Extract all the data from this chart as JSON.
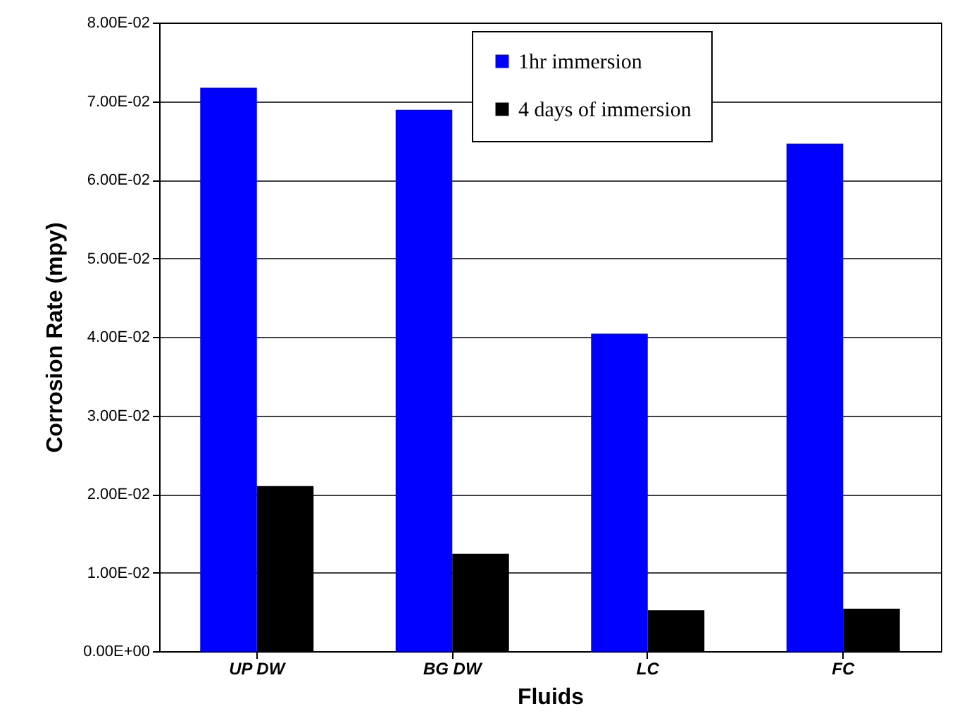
{
  "chart_data": {
    "type": "bar",
    "xlabel": "Fluids",
    "ylabel": "Corrosion Rate (mpy)",
    "categories": [
      "UP DW",
      "BG DW",
      "LC",
      "FC"
    ],
    "series": [
      {
        "name": "1hr immersion",
        "color": "#0000ff",
        "values": [
          0.0717,
          0.0689,
          0.0404,
          0.0646
        ]
      },
      {
        "name": "4 days of immersion",
        "color": "#000000",
        "values": [
          0.021,
          0.0124,
          0.0052,
          0.0054
        ]
      }
    ],
    "ylim": [
      0,
      0.08
    ],
    "yticks": [
      {
        "value": 0,
        "label": "0.00E+00"
      },
      {
        "value": 0.01,
        "label": "1.00E-02"
      },
      {
        "value": 0.02,
        "label": "2.00E-02"
      },
      {
        "value": 0.03,
        "label": "3.00E-02"
      },
      {
        "value": 0.04,
        "label": "4.00E-02"
      },
      {
        "value": 0.05,
        "label": "5.00E-02"
      },
      {
        "value": 0.06,
        "label": "6.00E-02"
      },
      {
        "value": 0.07,
        "label": "7.00E-02"
      },
      {
        "value": 0.08,
        "label": "8.00E-02"
      }
    ],
    "grid": "y",
    "legend": "top"
  }
}
